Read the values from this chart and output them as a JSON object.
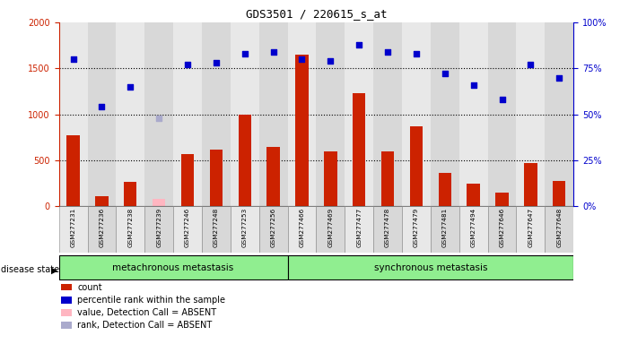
{
  "title": "GDS3501 / 220615_s_at",
  "samples": [
    "GSM277231",
    "GSM277236",
    "GSM277238",
    "GSM277239",
    "GSM277246",
    "GSM277248",
    "GSM277253",
    "GSM277256",
    "GSM277466",
    "GSM277469",
    "GSM277477",
    "GSM277478",
    "GSM277479",
    "GSM277481",
    "GSM277494",
    "GSM277646",
    "GSM277647",
    "GSM277648"
  ],
  "counts": [
    775,
    110,
    270,
    null,
    565,
    615,
    1000,
    650,
    1650,
    600,
    1230,
    600,
    875,
    360,
    245,
    150,
    475,
    275
  ],
  "absent_counts": [
    null,
    null,
    null,
    80,
    null,
    null,
    null,
    null,
    null,
    null,
    null,
    null,
    null,
    null,
    null,
    null,
    null,
    null
  ],
  "ranks_pct": [
    80,
    54,
    65,
    null,
    77,
    78,
    83,
    84,
    80,
    79,
    88,
    84,
    83,
    72,
    66,
    58,
    77,
    70
  ],
  "absent_ranks_pct": [
    null,
    null,
    null,
    48,
    null,
    null,
    null,
    null,
    null,
    null,
    null,
    null,
    null,
    null,
    null,
    null,
    null,
    null
  ],
  "bar_color": "#CC2200",
  "absent_bar_color": "#FFB6C1",
  "rank_color": "#0000CC",
  "absent_rank_color": "#AAAACC",
  "ylim_left": [
    0,
    2000
  ],
  "ylim_right": [
    0,
    100
  ],
  "yticks_left": [
    0,
    500,
    1000,
    1500,
    2000
  ],
  "yticks_right": [
    0,
    25,
    50,
    75,
    100
  ],
  "hlines": [
    500,
    1000,
    1500
  ],
  "col_colors": [
    "#E8E8E8",
    "#D8D8D8"
  ],
  "legend_items": [
    {
      "label": "count",
      "color": "#CC2200"
    },
    {
      "label": "percentile rank within the sample",
      "color": "#0000CC"
    },
    {
      "label": "value, Detection Call = ABSENT",
      "color": "#FFB6C1"
    },
    {
      "label": "rank, Detection Call = ABSENT",
      "color": "#AAAACC"
    }
  ],
  "group_label": "disease state",
  "group_labels": [
    {
      "text": "metachronous metastasis",
      "start": 0,
      "end": 7
    },
    {
      "text": "synchronous metastasis",
      "start": 8,
      "end": 17
    }
  ],
  "group_color": "#90EE90"
}
